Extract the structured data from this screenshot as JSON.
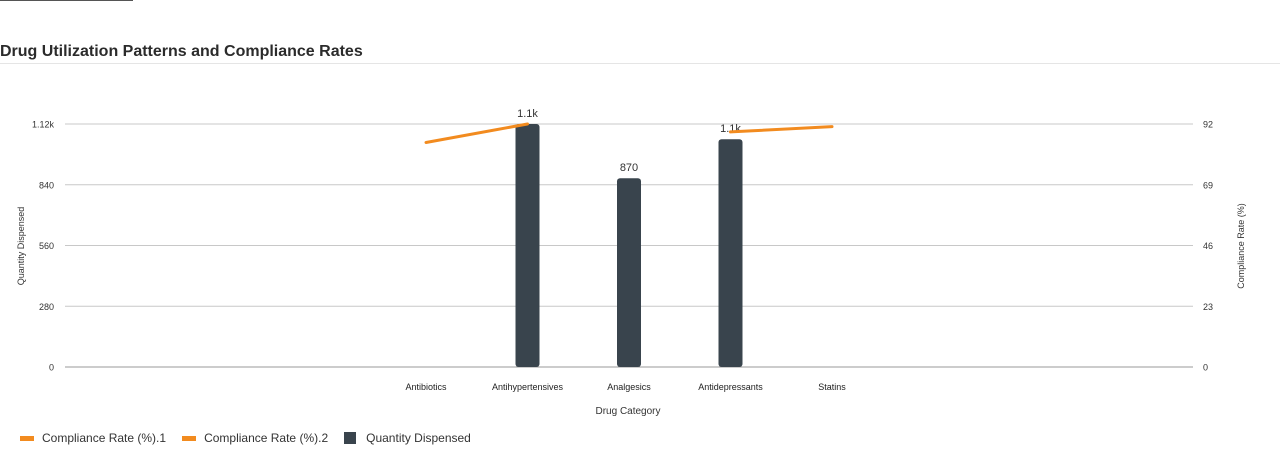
{
  "chart_data": {
    "type": "bar",
    "title": "Drug Utilization Patterns and Compliance Rates",
    "xlabel": "Drug Category",
    "ylabel": "Quantity Dispensed",
    "y2label": "Compliance Rate (%)",
    "categories": [
      "Antibiotics",
      "Antihypertensives",
      "Analgesics",
      "Antidepressants",
      "Statins"
    ],
    "ylim": [
      0,
      1120
    ],
    "y_ticks": [
      "0",
      "280",
      "560",
      "840",
      "1.12k"
    ],
    "y2lim": [
      0,
      92
    ],
    "y2_ticks": [
      "0",
      "23",
      "46",
      "69",
      "92"
    ],
    "grid": true,
    "legend_position": "bottom-left",
    "series": [
      {
        "name": "Compliance Rate (%).1",
        "kind": "line",
        "axis": "right",
        "color": "#f28b1f",
        "points": [
          {
            "category": "Antibiotics",
            "value": 85
          },
          {
            "category": "Antihypertensives",
            "value": 92
          }
        ]
      },
      {
        "name": "Compliance Rate (%).2",
        "kind": "line",
        "axis": "right",
        "color": "#f28b1f",
        "points": [
          {
            "category": "Antidepressants",
            "value": 89
          },
          {
            "category": "Statins",
            "value": 91
          }
        ]
      },
      {
        "name": "Quantity Dispensed",
        "kind": "bar",
        "axis": "left",
        "color": "#39444d",
        "points": [
          {
            "category": "Antihypertensives",
            "value": 1120,
            "label": "1.1k"
          },
          {
            "category": "Analgesics",
            "value": 870,
            "label": "870"
          },
          {
            "category": "Antidepressants",
            "value": 1050,
            "label": "1.1k"
          }
        ]
      }
    ]
  }
}
